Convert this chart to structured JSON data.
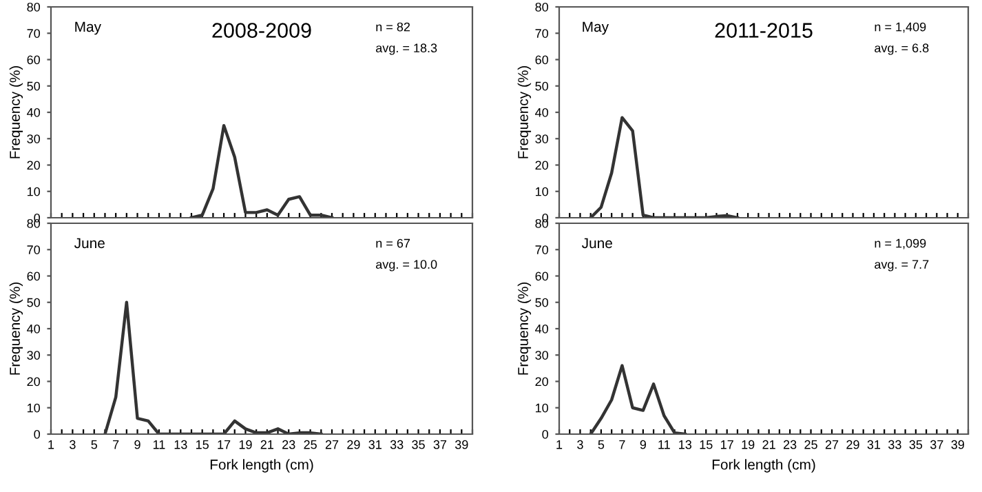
{
  "chart_data": [
    {
      "type": "line",
      "title": "2008-2009",
      "ylabel": "Frequency (%)",
      "annotations": [
        "May",
        "n = 82",
        "avg. = 18.3"
      ],
      "tick_labels": "y",
      "grid": false,
      "legend": false,
      "series": [
        {
          "color": "#333333",
          "x": [
            14,
            15,
            16,
            17,
            18,
            19,
            20,
            21,
            22,
            23,
            24,
            25,
            26,
            27
          ],
          "values": [
            0,
            1,
            11,
            35,
            23,
            2,
            2,
            3,
            1,
            7,
            8,
            1,
            1,
            0
          ]
        }
      ],
      "xlim": [
        1,
        40
      ],
      "ylim": [
        0,
        80
      ],
      "yticks": [
        0,
        10,
        20,
        30,
        40,
        50,
        60,
        70,
        80
      ],
      "xticks": [
        1,
        {
          "value": 2,
          "label": null
        },
        3,
        {
          "value": 4,
          "label": null
        },
        5,
        {
          "value": 6,
          "label": null
        },
        7,
        {
          "value": 8,
          "label": null
        },
        9,
        {
          "value": 10,
          "label": null
        },
        11,
        {
          "value": 12,
          "label": null
        },
        13,
        {
          "value": 14,
          "label": null
        },
        15,
        {
          "value": 16,
          "label": null
        },
        17,
        {
          "value": 18,
          "label": null
        },
        19,
        {
          "value": 20,
          "label": null
        },
        21,
        {
          "value": 22,
          "label": null
        },
        23,
        {
          "value": 24,
          "label": null
        },
        25,
        {
          "value": 26,
          "label": null
        },
        27,
        {
          "value": 28,
          "label": null
        },
        29,
        {
          "value": 30,
          "label": null
        },
        31,
        {
          "value": 32,
          "label": null
        },
        33,
        {
          "value": 34,
          "label": null
        },
        35,
        {
          "value": 36,
          "label": null
        },
        37,
        {
          "value": 38,
          "label": null
        },
        39,
        {
          "value": 40,
          "label": null
        }
      ]
    },
    {
      "type": "line",
      "title": "2011-2015",
      "ylabel": "Frequency (%)",
      "annotations": [
        "May",
        "n = 1,409",
        "avg. = 6.8"
      ],
      "tick_labels": "y",
      "grid": false,
      "legend": false,
      "series": [
        {
          "color": "#333333",
          "x": [
            4,
            5,
            6,
            7,
            8,
            9,
            10,
            11,
            12,
            13,
            14,
            15,
            16,
            17,
            18
          ],
          "values": [
            0,
            4,
            17,
            38,
            33,
            1,
            0,
            0,
            0,
            0,
            0,
            0,
            0.5,
            0.8,
            0
          ]
        }
      ],
      "xlim": [
        1,
        40
      ],
      "ylim": [
        0,
        80
      ],
      "yticks": [
        0,
        10,
        20,
        30,
        40,
        50,
        60,
        70,
        80
      ],
      "xticks": [
        1,
        {
          "value": 2,
          "label": null
        },
        3,
        {
          "value": 4,
          "label": null
        },
        5,
        {
          "value": 6,
          "label": null
        },
        7,
        {
          "value": 8,
          "label": null
        },
        9,
        {
          "value": 10,
          "label": null
        },
        11,
        {
          "value": 12,
          "label": null
        },
        13,
        {
          "value": 14,
          "label": null
        },
        15,
        {
          "value": 16,
          "label": null
        },
        17,
        {
          "value": 18,
          "label": null
        },
        19,
        {
          "value": 20,
          "label": null
        },
        21,
        {
          "value": 22,
          "label": null
        },
        23,
        {
          "value": 24,
          "label": null
        },
        25,
        {
          "value": 26,
          "label": null
        },
        27,
        {
          "value": 28,
          "label": null
        },
        29,
        {
          "value": 30,
          "label": null
        },
        31,
        {
          "value": 32,
          "label": null
        },
        33,
        {
          "value": 34,
          "label": null
        },
        35,
        {
          "value": 36,
          "label": null
        },
        37,
        {
          "value": 38,
          "label": null
        },
        39,
        {
          "value": 40,
          "label": null
        }
      ]
    },
    {
      "type": "line",
      "xlabel": "Fork length (cm)",
      "ylabel": "Frequency (%)",
      "annotations": [
        "June",
        "n = 67",
        "avg. = 10.0"
      ],
      "grid": false,
      "legend": false,
      "series": [
        {
          "color": "#333333",
          "x": [
            6,
            7,
            8,
            9,
            10,
            11,
            12,
            13,
            14,
            15,
            16,
            17,
            18,
            19,
            20,
            21,
            22,
            23,
            24,
            25,
            26
          ],
          "values": [
            0,
            14,
            50,
            6,
            5,
            0,
            0,
            0,
            0,
            0,
            0,
            0,
            5,
            2,
            0.5,
            0.5,
            2,
            0,
            0.5,
            0.5,
            0
          ]
        }
      ],
      "xlim": [
        1,
        40
      ],
      "ylim": [
        0,
        80
      ],
      "yticks": [
        0,
        10,
        20,
        30,
        40,
        50,
        60,
        70,
        80
      ],
      "xticks": [
        1,
        {
          "value": 2,
          "label": null
        },
        3,
        {
          "value": 4,
          "label": null
        },
        5,
        {
          "value": 6,
          "label": null
        },
        7,
        {
          "value": 8,
          "label": null
        },
        9,
        {
          "value": 10,
          "label": null
        },
        11,
        {
          "value": 12,
          "label": null
        },
        13,
        {
          "value": 14,
          "label": null
        },
        15,
        {
          "value": 16,
          "label": null
        },
        17,
        {
          "value": 18,
          "label": null
        },
        19,
        {
          "value": 20,
          "label": null
        },
        21,
        {
          "value": 22,
          "label": null
        },
        23,
        {
          "value": 24,
          "label": null
        },
        25,
        {
          "value": 26,
          "label": null
        },
        27,
        {
          "value": 28,
          "label": null
        },
        29,
        {
          "value": 30,
          "label": null
        },
        31,
        {
          "value": 32,
          "label": null
        },
        33,
        {
          "value": 34,
          "label": null
        },
        35,
        {
          "value": 36,
          "label": null
        },
        37,
        {
          "value": 38,
          "label": null
        },
        39,
        {
          "value": 40,
          "label": null
        }
      ]
    },
    {
      "type": "line",
      "xlabel": "Fork length (cm)",
      "ylabel": "Frequency (%)",
      "annotations": [
        "June",
        "n = 1,099",
        "avg. = 7.7"
      ],
      "grid": false,
      "legend": false,
      "series": [
        {
          "color": "#333333",
          "x": [
            4,
            5,
            6,
            7,
            8,
            9,
            10,
            11,
            12,
            13
          ],
          "values": [
            0,
            6,
            13,
            26,
            10,
            9,
            19,
            7,
            0.5,
            0
          ]
        }
      ],
      "xlim": [
        1,
        40
      ],
      "ylim": [
        0,
        80
      ],
      "yticks": [
        0,
        10,
        20,
        30,
        40,
        50,
        60,
        70,
        80
      ],
      "xticks": [
        1,
        {
          "value": 2,
          "label": null
        },
        3,
        {
          "value": 4,
          "label": null
        },
        5,
        {
          "value": 6,
          "label": null
        },
        7,
        {
          "value": 8,
          "label": null
        },
        9,
        {
          "value": 10,
          "label": null
        },
        11,
        {
          "value": 12,
          "label": null
        },
        13,
        {
          "value": 14,
          "label": null
        },
        15,
        {
          "value": 16,
          "label": null
        },
        17,
        {
          "value": 18,
          "label": null
        },
        19,
        {
          "value": 20,
          "label": null
        },
        21,
        {
          "value": 22,
          "label": null
        },
        23,
        {
          "value": 24,
          "label": null
        },
        25,
        {
          "value": 26,
          "label": null
        },
        27,
        {
          "value": 28,
          "label": null
        },
        29,
        {
          "value": 30,
          "label": null
        },
        31,
        {
          "value": 32,
          "label": null
        },
        33,
        {
          "value": 34,
          "label": null
        },
        35,
        {
          "value": 36,
          "label": null
        },
        37,
        {
          "value": 38,
          "label": null
        },
        39,
        {
          "value": 40,
          "label": null
        }
      ]
    }
  ]
}
